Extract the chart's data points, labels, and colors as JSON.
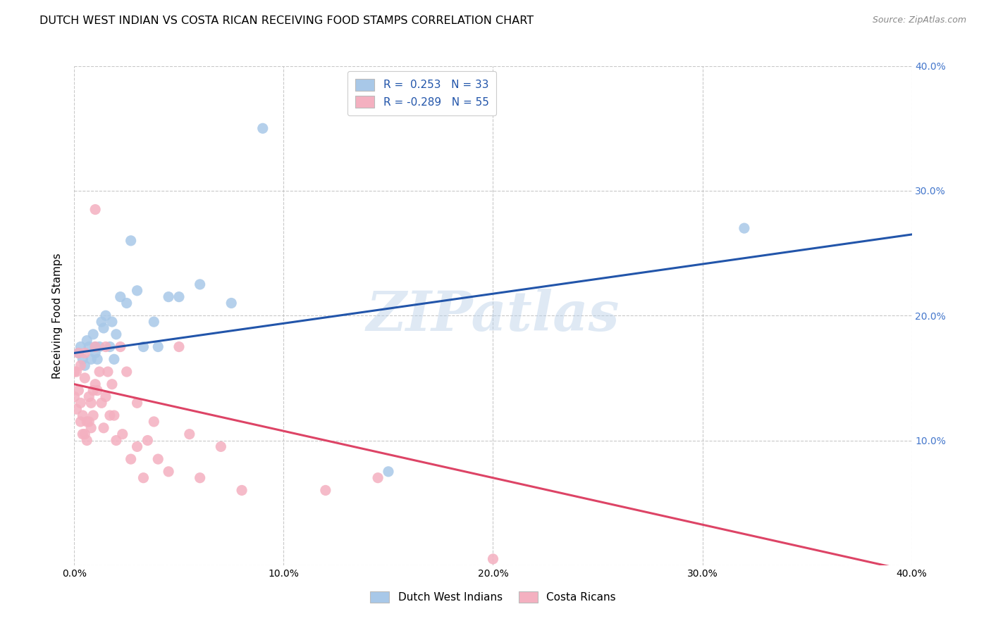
{
  "title": "DUTCH WEST INDIAN VS COSTA RICAN RECEIVING FOOD STAMPS CORRELATION CHART",
  "source": "Source: ZipAtlas.com",
  "ylabel": "Receiving Food Stamps",
  "watermark": "ZIPatlas",
  "legend_blue_R": "R =  0.253",
  "legend_blue_N": "N = 33",
  "legend_pink_R": "R = -0.289",
  "legend_pink_N": "N = 55",
  "blue_color": "#a8c8e8",
  "pink_color": "#f4b0c0",
  "blue_line_color": "#2255aa",
  "pink_line_color": "#dd4466",
  "right_axis_color": "#4477cc",
  "grid_color": "#bbbbbb",
  "background_color": "#ffffff",
  "xlim": [
    0.0,
    0.4
  ],
  "ylim": [
    0.0,
    0.4
  ],
  "right_ytick_labels": [
    "10.0%",
    "20.0%",
    "30.0%",
    "40.0%"
  ],
  "right_ytick_values": [
    0.1,
    0.2,
    0.3,
    0.4
  ],
  "blue_scatter_x": [
    0.002,
    0.003,
    0.004,
    0.005,
    0.006,
    0.007,
    0.008,
    0.009,
    0.01,
    0.01,
    0.011,
    0.012,
    0.013,
    0.014,
    0.015,
    0.017,
    0.018,
    0.019,
    0.02,
    0.022,
    0.025,
    0.027,
    0.03,
    0.033,
    0.038,
    0.04,
    0.045,
    0.05,
    0.06,
    0.075,
    0.09,
    0.15,
    0.32
  ],
  "blue_scatter_y": [
    0.17,
    0.175,
    0.165,
    0.16,
    0.18,
    0.175,
    0.165,
    0.185,
    0.175,
    0.17,
    0.165,
    0.175,
    0.195,
    0.19,
    0.2,
    0.175,
    0.195,
    0.165,
    0.185,
    0.215,
    0.21,
    0.26,
    0.22,
    0.175,
    0.195,
    0.175,
    0.215,
    0.215,
    0.225,
    0.21,
    0.35,
    0.075,
    0.27
  ],
  "pink_scatter_x": [
    0.0,
    0.0,
    0.001,
    0.001,
    0.002,
    0.002,
    0.003,
    0.003,
    0.003,
    0.004,
    0.004,
    0.005,
    0.005,
    0.005,
    0.006,
    0.006,
    0.007,
    0.007,
    0.008,
    0.008,
    0.009,
    0.009,
    0.01,
    0.01,
    0.01,
    0.011,
    0.012,
    0.013,
    0.014,
    0.015,
    0.015,
    0.016,
    0.017,
    0.018,
    0.019,
    0.02,
    0.022,
    0.023,
    0.025,
    0.027,
    0.03,
    0.03,
    0.033,
    0.035,
    0.038,
    0.04,
    0.045,
    0.05,
    0.055,
    0.06,
    0.07,
    0.08,
    0.12,
    0.145,
    0.2
  ],
  "pink_scatter_y": [
    0.155,
    0.135,
    0.155,
    0.125,
    0.17,
    0.14,
    0.16,
    0.13,
    0.115,
    0.12,
    0.105,
    0.17,
    0.15,
    0.105,
    0.115,
    0.1,
    0.135,
    0.115,
    0.13,
    0.11,
    0.14,
    0.12,
    0.285,
    0.175,
    0.145,
    0.14,
    0.155,
    0.13,
    0.11,
    0.175,
    0.135,
    0.155,
    0.12,
    0.145,
    0.12,
    0.1,
    0.175,
    0.105,
    0.155,
    0.085,
    0.095,
    0.13,
    0.07,
    0.1,
    0.115,
    0.085,
    0.075,
    0.175,
    0.105,
    0.07,
    0.095,
    0.06,
    0.06,
    0.07,
    0.005
  ],
  "blue_line_x": [
    0.0,
    0.4
  ],
  "blue_line_y_start": 0.17,
  "blue_line_y_end": 0.265,
  "pink_line_x": [
    0.0,
    0.4
  ],
  "pink_line_y_start": 0.145,
  "pink_line_y_end": -0.005
}
